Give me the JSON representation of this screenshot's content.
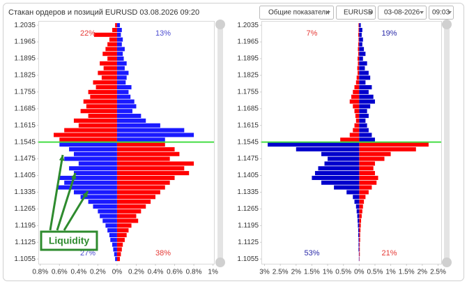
{
  "header": {
    "title": "Стакан ордеров и позиций EURUSD 03.08.2026 09:20",
    "controls": [
      "Общие показатели",
      "EURUSD",
      "03-08-2026",
      "09:03"
    ]
  },
  "chart_data": [
    {
      "type": "bar",
      "orientation": "horizontal",
      "levels": [
        1.2035,
        1.2015,
        1.1995,
        1.1975,
        1.1955,
        1.1935,
        1.1915,
        1.1895,
        1.1875,
        1.1855,
        1.1835,
        1.1815,
        1.1795,
        1.1775,
        1.1755,
        1.1735,
        1.1715,
        1.1695,
        1.1675,
        1.1655,
        1.1635,
        1.1615,
        1.1595,
        1.1575,
        1.1555,
        1.1535,
        1.1515,
        1.1495,
        1.1475,
        1.1455,
        1.1435,
        1.1415,
        1.1395,
        1.1375,
        1.1355,
        1.1335,
        1.1315,
        1.1295,
        1.1275,
        1.1255,
        1.1235,
        1.1215,
        1.1195,
        1.1175,
        1.1155,
        1.1135,
        1.1115,
        1.1095,
        1.1075,
        1.1055
      ],
      "series": [
        {
          "color": "#ff0000",
          "values": [
            -0.02,
            -0.05,
            -0.24,
            -0.08,
            -0.1,
            -0.12,
            -0.15,
            -0.1,
            -0.18,
            -0.14,
            -0.2,
            -0.16,
            -0.25,
            -0.22,
            -0.3,
            -0.28,
            -0.35,
            -0.32,
            -0.38,
            -0.3,
            -0.45,
            -0.4,
            -0.55,
            -0.66,
            -0.6,
            0.5,
            0.6,
            0.65,
            0.55,
            0.8,
            0.7,
            0.75,
            0.6,
            0.55,
            0.5,
            0.45,
            0.4,
            0.35,
            0.3,
            0.25,
            0.2,
            0.22,
            0.15,
            0.12,
            0.1,
            0.08,
            0.06,
            0.05,
            0.04,
            0.03
          ]
        },
        {
          "color": "#1a1aff",
          "values": [
            0.03,
            0.05,
            0.04,
            0.06,
            0.05,
            0.08,
            0.06,
            0.07,
            0.1,
            0.08,
            0.12,
            0.1,
            0.09,
            0.15,
            0.12,
            0.14,
            0.18,
            0.2,
            0.16,
            0.25,
            0.3,
            0.45,
            0.7,
            0.8,
            0.5,
            -0.6,
            -0.5,
            -0.45,
            -0.55,
            -0.4,
            -0.5,
            -0.45,
            -0.6,
            -0.55,
            -0.62,
            -0.45,
            -0.38,
            -0.3,
            -0.25,
            -0.2,
            -0.18,
            -0.15,
            -0.12,
            -0.1,
            -0.08,
            -0.07,
            -0.05,
            -0.04,
            -0.03,
            -0.02
          ]
        }
      ],
      "xlim": [
        -0.82,
        1.01
      ],
      "xticks": [
        {
          "value": -0.8,
          "label": "0.8%"
        },
        {
          "value": -0.6,
          "label": "0.6%"
        },
        {
          "value": -0.4,
          "label": "0.4%"
        },
        {
          "value": -0.2,
          "label": "0.2%"
        },
        {
          "value": 0,
          "label": "0%"
        },
        {
          "value": 0.2,
          "label": "0.2%"
        },
        {
          "value": 0.4,
          "label": "0.4%"
        },
        {
          "value": 0.6,
          "label": "0.6%"
        },
        {
          "value": 0.8,
          "label": "0.8%"
        },
        {
          "value": 1,
          "label": "1%"
        }
      ],
      "ylim": [
        1.1035,
        1.2053
      ],
      "yticks": [
        1.2035,
        1.1965,
        1.1895,
        1.1825,
        1.1755,
        1.1685,
        1.1615,
        1.1545,
        1.1475,
        1.1405,
        1.1335,
        1.1265,
        1.1195,
        1.1125,
        1.1055
      ],
      "price_line": 1.1545,
      "price_line_color": "#44dd44",
      "annotations": [
        {
          "text": "22%",
          "color": "#e53935",
          "corner": "top-left"
        },
        {
          "text": "13%",
          "color": "#4a4ad0",
          "corner": "top-right"
        },
        {
          "text": "27%",
          "color": "#4a4ad0",
          "corner": "bottom-left"
        },
        {
          "text": "38%",
          "color": "#e53935",
          "corner": "bottom-right"
        }
      ],
      "callout": "Liquidity"
    },
    {
      "type": "bar",
      "orientation": "horizontal",
      "levels": [
        1.2035,
        1.2015,
        1.1995,
        1.1975,
        1.1955,
        1.1935,
        1.1915,
        1.1895,
        1.1875,
        1.1855,
        1.1835,
        1.1815,
        1.1795,
        1.1775,
        1.1755,
        1.1735,
        1.1715,
        1.1695,
        1.1675,
        1.1655,
        1.1635,
        1.1615,
        1.1595,
        1.1575,
        1.1555,
        1.1535,
        1.1515,
        1.1495,
        1.1475,
        1.1455,
        1.1435,
        1.1415,
        1.1395,
        1.1375,
        1.1355,
        1.1335,
        1.1315,
        1.1295,
        1.1275,
        1.1255,
        1.1235,
        1.1215,
        1.1195,
        1.1175,
        1.1155,
        1.1135,
        1.1115,
        1.1095,
        1.1075,
        1.1055
      ],
      "series": [
        {
          "color": "#ff0000",
          "values": [
            -0.02,
            -0.02,
            -0.03,
            -0.02,
            -0.03,
            -0.04,
            -0.03,
            -0.05,
            -0.04,
            -0.06,
            -0.05,
            -0.08,
            -0.1,
            -0.15,
            -0.2,
            -0.25,
            -0.3,
            -0.2,
            -0.15,
            -0.12,
            -0.1,
            -0.15,
            -0.2,
            -0.3,
            -0.6,
            2.2,
            1.8,
            1.0,
            0.8,
            0.5,
            0.45,
            0.5,
            0.6,
            0.55,
            0.4,
            0.3,
            0.2,
            0.15,
            0.12,
            0.1,
            0.08,
            0.06,
            0.05,
            0.04,
            0.03,
            0.03,
            0.02,
            0.02,
            0.02,
            0.01
          ]
        },
        {
          "color": "#0000cc",
          "values": [
            0.05,
            0.1,
            0.08,
            0.12,
            0.1,
            0.15,
            0.2,
            0.12,
            0.25,
            0.18,
            0.3,
            0.35,
            0.2,
            0.4,
            0.3,
            0.45,
            0.5,
            0.35,
            0.25,
            0.3,
            0.2,
            0.25,
            0.3,
            0.4,
            0.5,
            -2.9,
            -2.0,
            -1.2,
            -1.0,
            -1.1,
            -1.3,
            -1.4,
            -1.5,
            -1.2,
            -0.8,
            -0.4,
            -0.2,
            -0.15,
            -0.1,
            -0.08,
            -0.06,
            -0.05,
            -0.04,
            -0.03,
            -0.03,
            -0.02,
            -0.02,
            -0.02,
            -0.01,
            -0.01
          ]
        }
      ],
      "xlim": [
        -3.1,
        2.6
      ],
      "xticks": [
        {
          "value": -3,
          "label": "3%"
        },
        {
          "value": -2.5,
          "label": "2.5%"
        },
        {
          "value": -2,
          "label": "2%"
        },
        {
          "value": -1.5,
          "label": "1.5%"
        },
        {
          "value": -1,
          "label": "1%"
        },
        {
          "value": -0.5,
          "label": "0.5%"
        },
        {
          "value": 0,
          "label": "0%"
        },
        {
          "value": 0.5,
          "label": "0.5%"
        },
        {
          "value": 1,
          "label": "1%"
        },
        {
          "value": 1.5,
          "label": "1.5%"
        },
        {
          "value": 2,
          "label": "2%"
        },
        {
          "value": 2.5,
          "label": "2.5%"
        }
      ],
      "ylim": [
        1.1035,
        1.2053
      ],
      "yticks": [
        1.2035,
        1.1965,
        1.1895,
        1.1825,
        1.1755,
        1.1685,
        1.1615,
        1.1545,
        1.1475,
        1.1405,
        1.1335,
        1.1265,
        1.1195,
        1.1125,
        1.1055
      ],
      "price_line": 1.1545,
      "price_line_color": "#44dd44",
      "annotations": [
        {
          "text": "7%",
          "color": "#e53935",
          "corner": "top-left"
        },
        {
          "text": "19%",
          "color": "#2a2aa8",
          "corner": "top-right"
        },
        {
          "text": "53%",
          "color": "#2a2aa8",
          "corner": "bottom-left"
        },
        {
          "text": "21%",
          "color": "#e53935",
          "corner": "bottom-right"
        }
      ]
    }
  ]
}
